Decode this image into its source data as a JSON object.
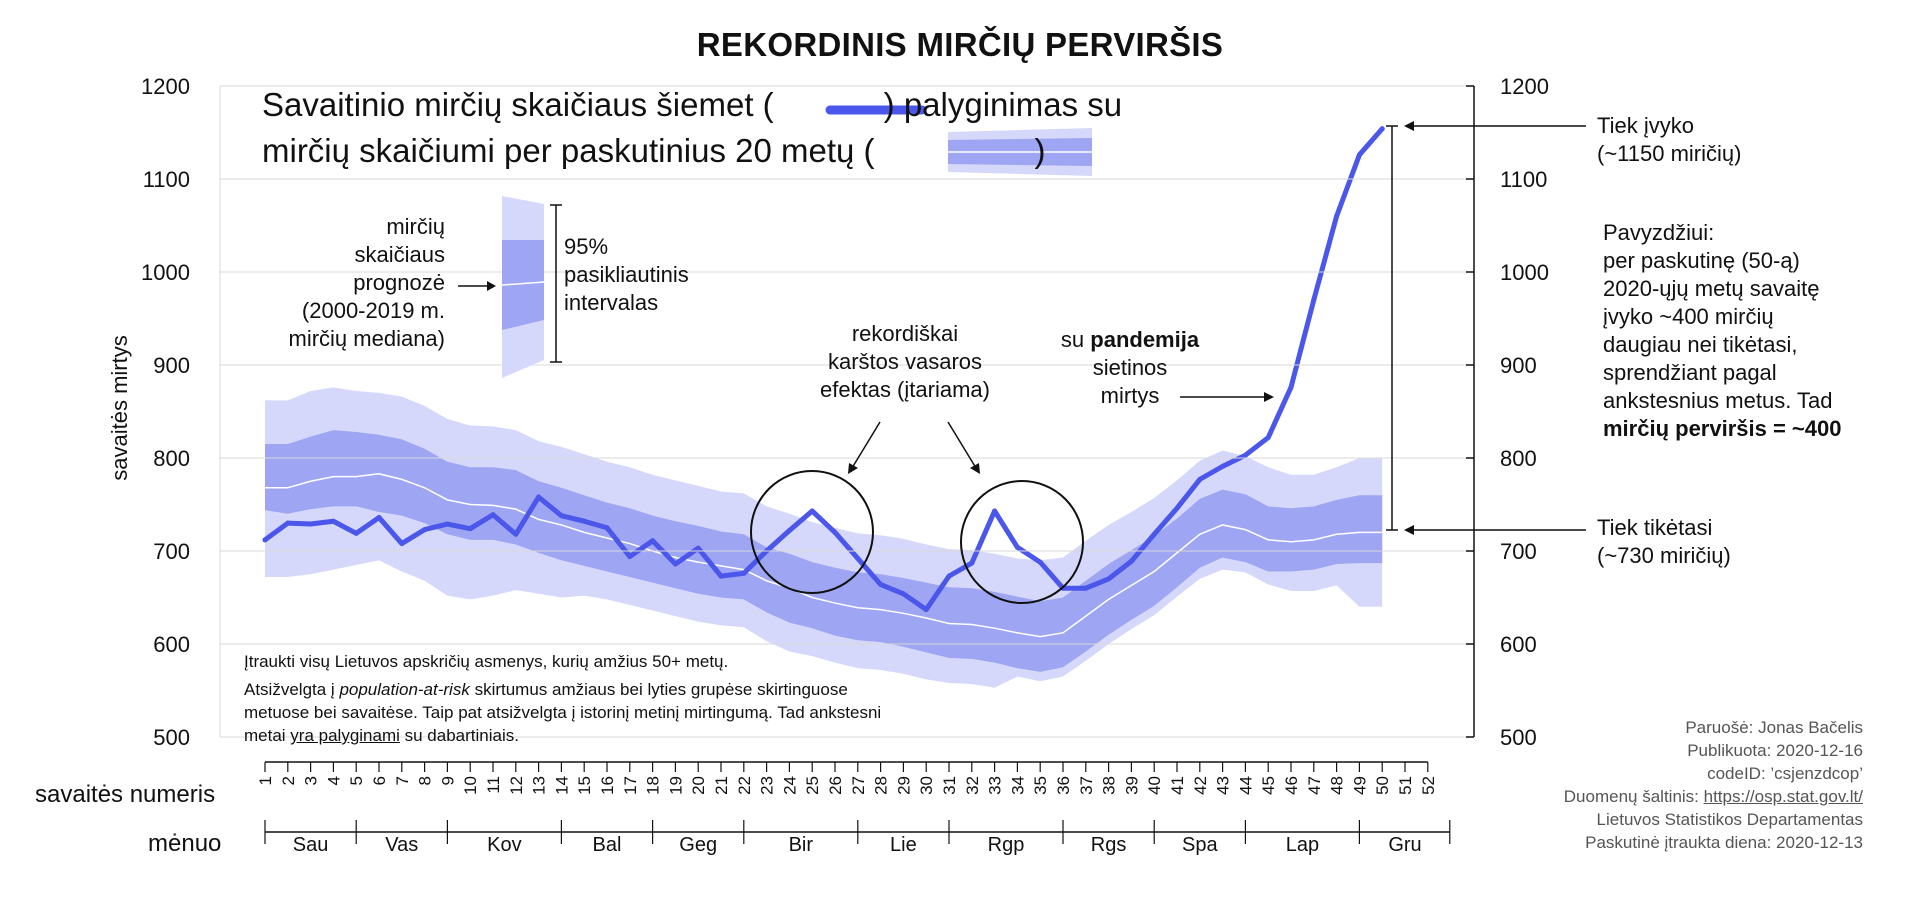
{
  "title": "REKORDINIS MIRČIŲ PERVIRŠIS",
  "legend": {
    "line1_a": "Savaitinio mirčių skaičiaus šiemet (",
    "line1_b": ") palyginimas su",
    "line2_a": "mirčių skaičiumi per paskutinius 20 metų (",
    "line2_b": ")"
  },
  "annotations": {
    "forecast": [
      "mirčių",
      "skaičiaus",
      "prognozė",
      "(2000-2019 m.",
      "mirčių mediana)"
    ],
    "ci": [
      "95%",
      "pasikliautinis",
      "intervalas"
    ],
    "summer": [
      "rekordiškai",
      "karštos vasaros",
      "efektas (įtariama)"
    ],
    "pandemic_a": "su ",
    "pandemic_b": "pandemija",
    "pandemic_rest": [
      "sietinos",
      "mirtys"
    ],
    "happened": [
      "Tiek įvyko",
      "(~1150 miričių)"
    ],
    "expected": [
      "Tiek tikėtasi",
      "(~730 miričių)"
    ],
    "example": [
      "Pavyzdžiui:",
      "per paskutinę (50-ą)",
      "2020-ųjų metų savaitę",
      "įvyko ~400 mirčių",
      "daugiau nei tikėtasi,",
      "sprendžiant pagal",
      "ankstesnius metus. Tad"
    ],
    "example_bold": "mirčių perviršis = ~400"
  },
  "footnote": {
    "p1": "Įtraukti visų Lietuvos apskričių asmenys, kurių amžius 50+ metų.",
    "p2_a": "Atsižvelgta į ",
    "p2_i": "population-at-risk",
    "p2_b": " skirtumus amžiaus bei lyties grupėse skirtinguose metuose bei savaitėse. Taip pat atsižvelgta į istorinį metinį mirtingumą. Tad ankstesni metai ",
    "p2_u": "yra palyginami",
    "p2_c": " su dabartiniais."
  },
  "credits": {
    "author": "Paruošė: Jonas Bačelis",
    "published": "Publikuota: 2020-12-16",
    "code": "codeID: ’csjenzdcop’",
    "source_label": "Duomenų šaltinis: ",
    "source_url": "https://osp.stat.gov.lt/",
    "source_org": "Lietuvos Statistikos Departamentas",
    "last_day": "Paskutinė įtraukta diena: 2020-12-13"
  },
  "colors": {
    "line": "#4a57ea",
    "band95": "#d6d8fb",
    "band50": "#9ea5f3",
    "median": "#ffffff"
  },
  "chart_data": {
    "type": "line",
    "ylabel": "savaitės mirtys",
    "xlabel": "savaitės numeris",
    "month_label": "mėnuo",
    "ylim": [
      500,
      1200
    ],
    "yticks": [
      500,
      600,
      700,
      800,
      900,
      1000,
      1100,
      1200
    ],
    "weeks": [
      1,
      2,
      3,
      4,
      5,
      6,
      7,
      8,
      9,
      10,
      11,
      12,
      13,
      14,
      15,
      16,
      17,
      18,
      19,
      20,
      21,
      22,
      23,
      24,
      25,
      26,
      27,
      28,
      29,
      30,
      31,
      32,
      33,
      34,
      35,
      36,
      37,
      38,
      39,
      40,
      41,
      42,
      43,
      44,
      45,
      46,
      47,
      48,
      49,
      50,
      51,
      52
    ],
    "months": [
      {
        "label": "Sau",
        "start": 1,
        "end": 5
      },
      {
        "label": "Vas",
        "start": 5,
        "end": 9
      },
      {
        "label": "Kov",
        "start": 9,
        "end": 14
      },
      {
        "label": "Bal",
        "start": 14,
        "end": 18
      },
      {
        "label": "Geg",
        "start": 18,
        "end": 22
      },
      {
        "label": "Bir",
        "start": 22,
        "end": 27
      },
      {
        "label": "Lie",
        "start": 27,
        "end": 31
      },
      {
        "label": "Rgp",
        "start": 31,
        "end": 36
      },
      {
        "label": "Rgs",
        "start": 36,
        "end": 40
      },
      {
        "label": "Spa",
        "start": 40,
        "end": 44
      },
      {
        "label": "Lap",
        "start": 44,
        "end": 49
      },
      {
        "label": "Gru",
        "start": 49,
        "end": 53
      }
    ],
    "series": [
      {
        "type": "line",
        "x": [
          1,
          2,
          3,
          4,
          5,
          6,
          7,
          8,
          9,
          10,
          11,
          12,
          13,
          14,
          15,
          16,
          17,
          18,
          19,
          20,
          21,
          22,
          23,
          24,
          25,
          26,
          27,
          28,
          29,
          30,
          31,
          32,
          33,
          34,
          35,
          36,
          37,
          38,
          39,
          40,
          41,
          42,
          43,
          44,
          45,
          46,
          47,
          48,
          49,
          50
        ],
        "values": [
          712,
          730,
          729,
          732,
          719,
          736,
          708,
          723,
          729,
          724,
          739,
          718,
          758,
          738,
          732,
          725,
          694,
          711,
          686,
          703,
          673,
          676,
          700,
          722,
          743,
          720,
          692,
          664,
          654,
          637,
          673,
          687,
          743,
          704,
          688,
          660,
          660,
          670,
          689,
          718,
          746,
          777,
          791,
          803,
          822,
          876,
          970,
          1060,
          1126,
          1154
        ]
      },
      {
        "type": "band",
        "x": [
          1,
          2,
          3,
          4,
          5,
          6,
          7,
          8,
          9,
          10,
          11,
          12,
          13,
          14,
          15,
          16,
          17,
          18,
          19,
          20,
          21,
          22,
          23,
          24,
          25,
          26,
          27,
          28,
          29,
          30,
          31,
          32,
          33,
          34,
          35,
          36,
          37,
          38,
          39,
          40,
          41,
          42,
          43,
          44,
          45,
          46,
          47,
          48,
          49,
          50
        ],
        "median": [
          768,
          768,
          775,
          780,
          780,
          783,
          777,
          768,
          755,
          750,
          749,
          745,
          734,
          728,
          720,
          714,
          708,
          700,
          693,
          688,
          684,
          680,
          668,
          660,
          650,
          644,
          639,
          637,
          633,
          628,
          622,
          621,
          617,
          612,
          608,
          612,
          630,
          648,
          663,
          678,
          698,
          718,
          728,
          723,
          712,
          710,
          712,
          718,
          720,
          720
        ],
        "lower50": [
          744,
          740,
          745,
          748,
          748,
          742,
          738,
          730,
          718,
          712,
          712,
          707,
          698,
          690,
          684,
          678,
          672,
          666,
          660,
          654,
          650,
          648,
          634,
          623,
          617,
          609,
          604,
          602,
          597,
          591,
          585,
          584,
          580,
          574,
          570,
          575,
          592,
          610,
          626,
          641,
          661,
          682,
          693,
          688,
          678,
          678,
          680,
          686,
          687,
          687
        ],
        "upper50": [
          815,
          815,
          823,
          830,
          828,
          825,
          820,
          810,
          796,
          790,
          790,
          787,
          775,
          768,
          760,
          752,
          746,
          738,
          732,
          727,
          721,
          718,
          704,
          697,
          688,
          682,
          677,
          675,
          671,
          666,
          661,
          660,
          656,
          651,
          646,
          650,
          668,
          686,
          701,
          716,
          735,
          756,
          766,
          761,
          748,
          746,
          748,
          755,
          760,
          760
        ],
        "lower95": [
          672,
          672,
          675,
          680,
          685,
          690,
          678,
          668,
          652,
          648,
          652,
          658,
          654,
          650,
          652,
          648,
          642,
          636,
          630,
          624,
          620,
          618,
          603,
          592,
          587,
          580,
          574,
          572,
          568,
          562,
          558,
          557,
          553,
          565,
          560,
          565,
          582,
          600,
          616,
          631,
          651,
          670,
          680,
          677,
          664,
          657,
          657,
          663,
          640,
          640
        ],
        "upper95": [
          862,
          862,
          872,
          876,
          872,
          870,
          866,
          856,
          842,
          835,
          834,
          830,
          818,
          812,
          804,
          796,
          790,
          782,
          776,
          770,
          764,
          762,
          748,
          740,
          731,
          725,
          719,
          717,
          713,
          707,
          702,
          701,
          697,
          692,
          690,
          693,
          711,
          728,
          742,
          757,
          776,
          797,
          808,
          802,
          790,
          782,
          782,
          790,
          800,
          800
        ]
      }
    ]
  }
}
